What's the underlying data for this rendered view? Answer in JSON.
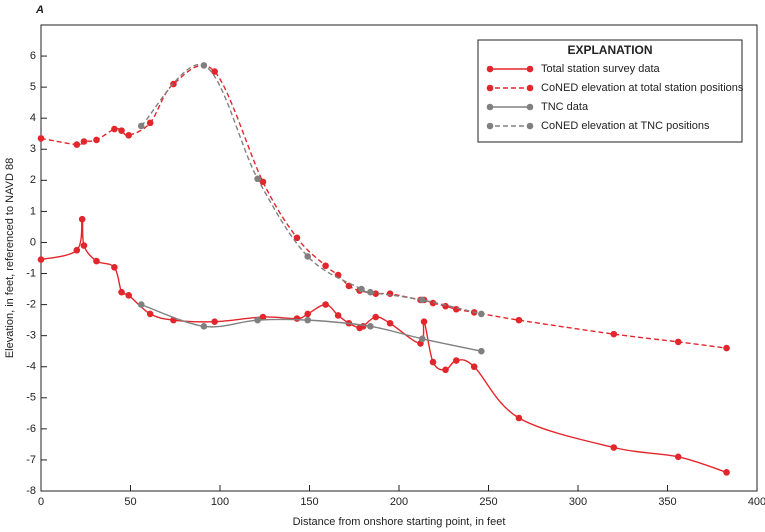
{
  "chart_data": {
    "type": "line",
    "panel_label": "A",
    "x_label": "Distance from onshore starting point, in feet",
    "y_label": "Elevation, in feet, referenced to NAVD 88",
    "legend_title": "EXPLANATION",
    "legend": "upper right",
    "xlim": [
      0,
      400
    ],
    "xticks": [
      0,
      50,
      100,
      150,
      200,
      250,
      300,
      350,
      400
    ],
    "ylim": [
      -8,
      7
    ],
    "yticks": [
      -8,
      -7,
      -6,
      -5,
      -4,
      -3,
      -2,
      -1,
      0,
      1,
      2,
      3,
      4,
      5,
      6
    ],
    "series": [
      {
        "name": "Total station survey data",
        "color": "#e3262b",
        "linestyle": "solid",
        "x": [
          0,
          20,
          23,
          24,
          31,
          41,
          45,
          49,
          61,
          74,
          97,
          124,
          143,
          149,
          159,
          166,
          172,
          178,
          180,
          187,
          195,
          212,
          214,
          219,
          226,
          232,
          242,
          267,
          320,
          356,
          383
        ],
        "values": [
          -0.55,
          -0.25,
          0.75,
          -0.1,
          -0.6,
          -0.8,
          -1.6,
          -1.7,
          -2.3,
          -2.5,
          -2.55,
          -2.4,
          -2.45,
          -2.3,
          -2.0,
          -2.35,
          -2.6,
          -2.75,
          -2.7,
          -2.4,
          -2.6,
          -3.25,
          -2.55,
          -3.85,
          -4.1,
          -3.8,
          -4.0,
          -5.65,
          -6.6,
          -6.9,
          -7.4
        ]
      },
      {
        "name": "CoNED elevation at total station positions",
        "color": "#e3262b",
        "linestyle": "dashed",
        "x": [
          0,
          20,
          24,
          31,
          41,
          45,
          49,
          61,
          74,
          97,
          124,
          143,
          159,
          166,
          172,
          178,
          187,
          195,
          212,
          214,
          219,
          226,
          232,
          242,
          267,
          320,
          356,
          383
        ],
        "values": [
          3.35,
          3.15,
          3.25,
          3.3,
          3.65,
          3.6,
          3.45,
          3.85,
          5.1,
          5.5,
          1.95,
          0.15,
          -0.75,
          -1.05,
          -1.4,
          -1.55,
          -1.65,
          -1.65,
          -1.85,
          -1.85,
          -1.95,
          -2.05,
          -2.15,
          -2.25,
          -2.5,
          -2.95,
          -3.2,
          -3.4
        ]
      },
      {
        "name": "TNC data",
        "color": "#808080",
        "linestyle": "solid",
        "x": [
          56,
          91,
          121,
          149,
          184,
          213,
          246
        ],
        "values": [
          -2.0,
          -2.7,
          -2.5,
          -2.5,
          -2.7,
          -3.1,
          -3.5
        ]
      },
      {
        "name": "CoNED elevation at TNC positions",
        "color": "#808080",
        "linestyle": "dashed",
        "x": [
          56,
          91,
          121,
          149,
          179,
          184,
          213,
          246
        ],
        "values": [
          3.75,
          5.7,
          2.05,
          -0.45,
          -1.5,
          -1.6,
          -1.85,
          -2.3
        ]
      }
    ]
  }
}
